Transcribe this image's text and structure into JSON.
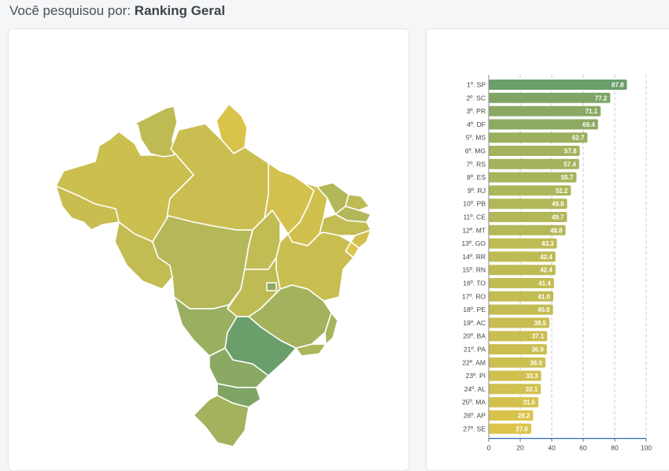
{
  "header": {
    "prefix": "Você pesquisou por:",
    "query": "Ranking Geral"
  },
  "colors": {
    "high": "#6a9e6a",
    "mid": "#a8b45c",
    "low": "#dcc44a",
    "axis": "#2a6ebb",
    "grid": "#c8c8c8"
  },
  "chart_data": {
    "type": "bar",
    "orientation": "horizontal",
    "categories": [
      "1º. SP",
      "2º. SC",
      "3º. PR",
      "4º. DF",
      "5º. MS",
      "6º. MG",
      "7º. RS",
      "8º. ES",
      "9º. RJ",
      "10º. PB",
      "11º. CE",
      "12º. MT",
      "13º. GO",
      "14º. RR",
      "15º. RN",
      "16º. TO",
      "17º. RO",
      "18º. PE",
      "19º. AC",
      "20º. BA",
      "21º. PA",
      "22º. AM",
      "23º. PI",
      "24º. AL",
      "25º. MA",
      "26º. AP",
      "27º. SE"
    ],
    "values": [
      87.8,
      77.2,
      71.1,
      69.4,
      62.7,
      57.8,
      57.4,
      55.7,
      52.2,
      49.8,
      49.7,
      48.8,
      43.3,
      42.4,
      42.4,
      41.4,
      41.0,
      40.8,
      38.5,
      37.1,
      36.9,
      36.0,
      33.3,
      33.1,
      31.5,
      28.2,
      27.0
    ],
    "value_labels": [
      "87.8",
      "77.2",
      "71.1",
      "69.4",
      "62.7",
      "57.8",
      "57.4",
      "55.7",
      "52.2",
      "49.8",
      "49.7",
      "48.8",
      "43.3",
      "42.4",
      "42.4",
      "41.4",
      "41.0",
      "40.8",
      "38.5",
      "37.1",
      "36.9",
      "36.0",
      "33.3",
      "33.1",
      "31.5",
      "28.2",
      "27.0"
    ],
    "x_ticks": [
      0,
      20,
      40,
      60,
      80,
      100
    ],
    "xlim": [
      0,
      100
    ],
    "grid": "vertical dashed"
  },
  "map": {
    "states": [
      {
        "id": "AM",
        "value": 36.0
      },
      {
        "id": "RR",
        "value": 42.4
      },
      {
        "id": "AP",
        "value": 28.2
      },
      {
        "id": "PA",
        "value": 36.9
      },
      {
        "id": "AC",
        "value": 38.5
      },
      {
        "id": "RO",
        "value": 41.0
      },
      {
        "id": "MT",
        "value": 48.8
      },
      {
        "id": "TO",
        "value": 41.4
      },
      {
        "id": "MA",
        "value": 31.5
      },
      {
        "id": "PI",
        "value": 33.3
      },
      {
        "id": "CE",
        "value": 49.7
      },
      {
        "id": "RN",
        "value": 42.4
      },
      {
        "id": "PB",
        "value": 49.8
      },
      {
        "id": "PE",
        "value": 40.8
      },
      {
        "id": "AL",
        "value": 33.1
      },
      {
        "id": "SE",
        "value": 27.0
      },
      {
        "id": "BA",
        "value": 37.1
      },
      {
        "id": "GO",
        "value": 43.3
      },
      {
        "id": "DF",
        "value": 69.4
      },
      {
        "id": "MG",
        "value": 57.8
      },
      {
        "id": "ES",
        "value": 55.7
      },
      {
        "id": "RJ",
        "value": 52.2
      },
      {
        "id": "SP",
        "value": 87.8
      },
      {
        "id": "MS",
        "value": 62.7
      },
      {
        "id": "PR",
        "value": 71.1
      },
      {
        "id": "SC",
        "value": 77.2
      },
      {
        "id": "RS",
        "value": 57.4
      }
    ]
  }
}
